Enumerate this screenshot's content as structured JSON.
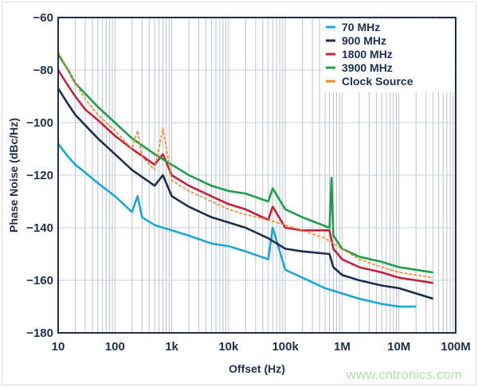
{
  "chart_data": {
    "type": "line",
    "title": "",
    "xlabel": "Offset (Hz)",
    "ylabel": "Phase Noise (dBc/Hz)",
    "x_scale": "log",
    "xlim": [
      10,
      100000000
    ],
    "ylim": [
      -180,
      -60
    ],
    "x_ticks": [
      10,
      100,
      1000,
      10000,
      100000,
      1000000,
      10000000,
      100000000
    ],
    "x_tick_labels": [
      "10",
      "100",
      "1k",
      "10k",
      "100k",
      "1M",
      "10M",
      "100M"
    ],
    "y_ticks": [
      -60,
      -80,
      -100,
      -120,
      -140,
      -160,
      -180
    ],
    "y_tick_labels": [
      "−60",
      "−80",
      "−100",
      "−120",
      "−140",
      "−160",
      "−180"
    ],
    "grid": true,
    "legend_position": "top-right",
    "series": [
      {
        "name": "70 MHz",
        "color": "#1aa7d6",
        "x": [
          10,
          15,
          20,
          30,
          50,
          100,
          200,
          250,
          300,
          500,
          1000,
          2000,
          5000,
          10000,
          20000,
          50000,
          60000,
          100000,
          200000,
          500000,
          1000000,
          2000000,
          5000000,
          10000000,
          20000000
        ],
        "y": [
          -108,
          -113,
          -116,
          -119,
          -123,
          -128,
          -134,
          -128,
          -136,
          -139,
          -141,
          -143,
          -146,
          -147,
          -149,
          -152,
          -140,
          -156,
          -159,
          -163,
          -165,
          -167,
          -169,
          -170,
          -170
        ]
      },
      {
        "name": "900 MHz",
        "color": "#1d2f4e",
        "x": [
          10,
          15,
          20,
          30,
          50,
          100,
          200,
          500,
          700,
          1000,
          2000,
          5000,
          10000,
          20000,
          50000,
          100000,
          200000,
          600000,
          700000,
          1000000,
          2000000,
          5000000,
          10000000,
          20000000,
          40000000
        ],
        "y": [
          -87,
          -93,
          -97,
          -101,
          -106,
          -112,
          -118,
          -124,
          -120,
          -128,
          -132,
          -136,
          -138,
          -140,
          -144,
          -148,
          -149,
          -150,
          -155,
          -158,
          -160,
          -162,
          -163,
          -165,
          -167
        ]
      },
      {
        "name": "1800 MHz",
        "color": "#c8203c",
        "x": [
          10,
          15,
          20,
          30,
          50,
          100,
          200,
          500,
          700,
          1000,
          2000,
          5000,
          10000,
          20000,
          50000,
          60000,
          100000,
          200000,
          600000,
          700000,
          1000000,
          2000000,
          5000000,
          10000000,
          20000000,
          40000000
        ],
        "y": [
          -80,
          -86,
          -90,
          -95,
          -99,
          -105,
          -110,
          -116,
          -112,
          -120,
          -124,
          -128,
          -131,
          -133,
          -137,
          -132,
          -140,
          -141,
          -141,
          -148,
          -152,
          -155,
          -157,
          -159,
          -160,
          -161
        ]
      },
      {
        "name": "3900 MHz",
        "color": "#1f9e4a",
        "x": [
          10,
          15,
          20,
          30,
          50,
          100,
          200,
          500,
          1000,
          2000,
          5000,
          10000,
          20000,
          50000,
          60000,
          100000,
          200000,
          600000,
          650000,
          700000,
          1000000,
          2000000,
          5000000,
          10000000,
          20000000,
          40000000
        ],
        "y": [
          -74,
          -80,
          -85,
          -89,
          -94,
          -100,
          -106,
          -112,
          -116,
          -120,
          -124,
          -126,
          -127,
          -130,
          -125,
          -133,
          -136,
          -140,
          -121,
          -143,
          -148,
          -151,
          -153,
          -155,
          -156,
          -157
        ]
      },
      {
        "name": "Clock Source",
        "color": "#f28a24",
        "x": [
          10,
          15,
          20,
          30,
          50,
          100,
          200,
          250,
          300,
          500,
          700,
          1000,
          2000,
          5000,
          10000,
          20000,
          50000,
          100000,
          200000,
          500000,
          1000000,
          2000000,
          5000000,
          10000000,
          20000000,
          40000000
        ],
        "y": [
          -73,
          -80,
          -85,
          -91,
          -97,
          -103,
          -110,
          -103,
          -113,
          -118,
          -102,
          -122,
          -126,
          -130,
          -133,
          -135,
          -137,
          -139,
          -141,
          -144,
          -148,
          -152,
          -155,
          -157,
          -158,
          -159
        ]
      }
    ]
  },
  "watermark": "www.cntronics.com"
}
